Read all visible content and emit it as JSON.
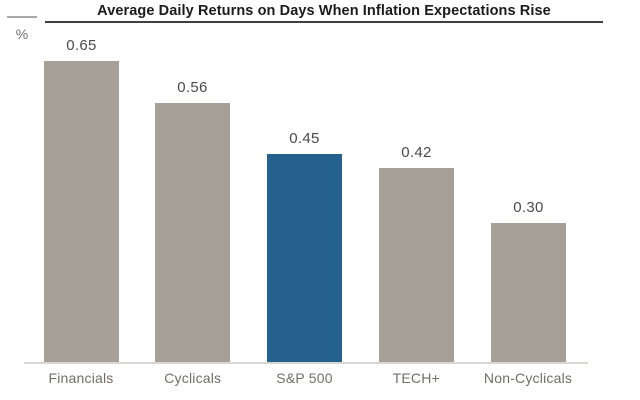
{
  "chart_data": {
    "type": "bar",
    "title": "Average Daily Returns on Days When Inflation Expectations Rise",
    "ylabel": "%",
    "xlabel": "",
    "categories": [
      "Financials",
      "Cyclicals",
      "S&P 500",
      "TECH+",
      "Non-Cyclicals"
    ],
    "values": [
      0.65,
      0.56,
      0.45,
      0.42,
      0.3
    ],
    "value_labels": [
      "0.65",
      "0.56",
      "0.45",
      "0.42",
      "0.30"
    ],
    "highlight_category": "S&P 500",
    "ylim": [
      0,
      0.65
    ],
    "grid": false,
    "legend": false,
    "colors": {
      "bar": "#a7a099",
      "highlight": "#25618f",
      "title": "#1b1b1b",
      "title_rule": "#3f3f3f",
      "unit_tick": "#a8a8a8",
      "unit_label": "#6e6e6e",
      "value_label": "#4b4b4b",
      "category_label": "#716e6a",
      "baseline": "#d9d7d4",
      "background": "#ffffff"
    }
  }
}
